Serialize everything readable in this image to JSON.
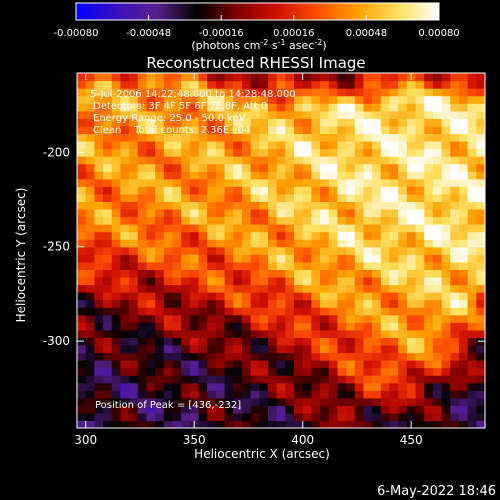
{
  "colorbar": {
    "tick_labels": [
      "-0.00080",
      "-0.00048",
      "-0.00016",
      "0.00016",
      "0.00048",
      "0.00080"
    ],
    "tick_values": [
      -0.0008,
      -0.00048,
      -0.00016,
      0.00016,
      0.00048,
      0.0008
    ],
    "range": [
      -0.0008,
      0.0008
    ],
    "units_prefix": "(photons cm",
    "units_exp1": "-2",
    "units_mid1": " s",
    "units_exp2": "-1",
    "units_mid2": " asec",
    "units_exp3": "-2",
    "units_suffix": ")",
    "colormap": [
      "#0000ff",
      "#3a10c0",
      "#5a1f8c",
      "#000000",
      "#800000",
      "#d01000",
      "#ff5000",
      "#ffa000",
      "#ffe060",
      "#ffffff"
    ]
  },
  "chart_data": {
    "type": "heatmap",
    "title": "Reconstructed RHESSI Image",
    "xlabel": "Heliocentric X (arcsec)",
    "ylabel": "Heliocentric Y (arcsec)",
    "xlim": [
      296,
      484
    ],
    "ylim": [
      -346,
      -158
    ],
    "x_ticks": [
      300,
      350,
      400,
      450
    ],
    "y_ticks": [
      -200,
      -250,
      -300
    ],
    "grid": false,
    "annotations": [
      "5-Jul-2006 14:22:48.000 to 14:28:48.000",
      "Detectors: 3F 4F 5F 6F 7F 8F, Att 0",
      "Energy Range: 25.0 - 50.0 keV",
      "Clean    Total counts: 2.36E+04"
    ],
    "peak_label": "Position of Peak = [436,-232]",
    "peak": [
      436,
      -232
    ],
    "value_range": [
      -0.0008,
      0.0008
    ],
    "description_points": [
      {
        "x": 436,
        "y": -232,
        "value": 0.00075
      },
      {
        "x": 470,
        "y": -210,
        "value": 0.0006
      },
      {
        "x": 395,
        "y": -225,
        "value": 0.00055
      },
      {
        "x": 340,
        "y": -215,
        "value": 0.00045
      },
      {
        "x": 310,
        "y": -205,
        "value": 0.0004
      },
      {
        "x": 360,
        "y": -250,
        "value": 0.00035
      },
      {
        "x": 430,
        "y": -280,
        "value": 0.0004
      },
      {
        "x": 330,
        "y": -300,
        "value": -0.0003
      },
      {
        "x": 380,
        "y": -320,
        "value": -0.0003
      }
    ]
  },
  "footer": {
    "timestamp": "6-May-2022 18:46"
  }
}
